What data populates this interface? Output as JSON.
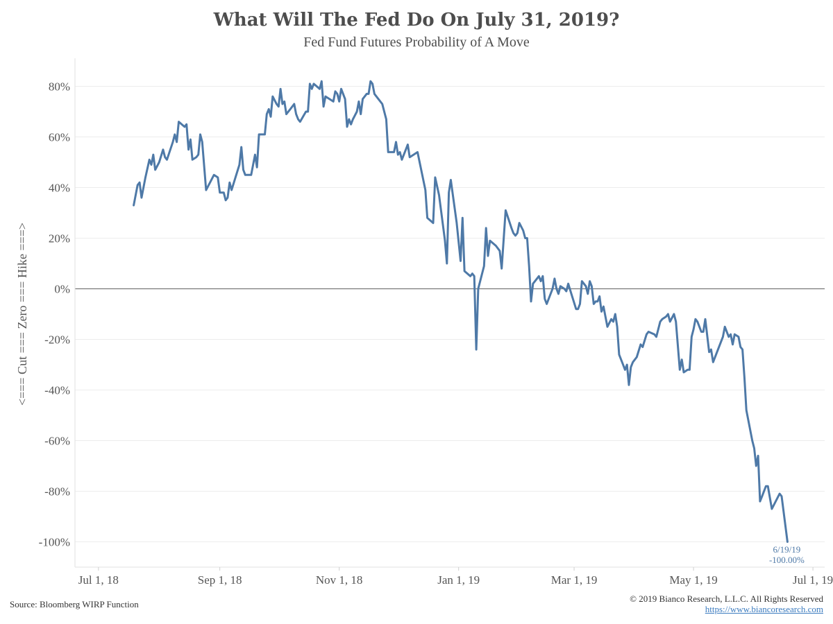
{
  "header": {
    "title": "What Will The Fed Do On July 31, 2019?",
    "subtitle": "Fed Fund Futures Probability of A Move"
  },
  "footer": {
    "source": "Source: Bloomberg WIRP Function",
    "copyright": "© 2019 Bianco Research, L.L.C. All Rights Reserved",
    "url": "https://www.biancoresearch.com"
  },
  "colors": {
    "line": "#4e79a7",
    "zero_line": "#777777",
    "grid": "#ececec",
    "annotation": "#4e79a7"
  },
  "chart_data": {
    "type": "line",
    "title": "What Will The Fed Do On July 31, 2019?",
    "subtitle": "Fed Fund Futures Probability of A Move",
    "xlabel": "",
    "ylabel": "<=== Cut === Zero === Hike ===>",
    "ylim": [
      -110,
      90
    ],
    "xlim": [
      "2018-06-19",
      "2019-07-07"
    ],
    "y_ticks": [
      80,
      60,
      40,
      20,
      0,
      -20,
      -40,
      -60,
      -80,
      -100
    ],
    "y_tick_labels": [
      "80%",
      "60%",
      "40%",
      "20%",
      "0%",
      "-20%",
      "-40%",
      "-60%",
      "-80%",
      "-100%"
    ],
    "x_ticks": [
      "2018-07-01",
      "2018-09-01",
      "2018-11-01",
      "2019-01-01",
      "2019-03-01",
      "2019-05-01",
      "2019-07-01"
    ],
    "x_tick_labels": [
      "Jul 1, 18",
      "Sep 1, 18",
      "Nov 1, 18",
      "Jan 1, 19",
      "Mar 1, 19",
      "May 1, 19",
      "Jul 1, 19"
    ],
    "grid": true,
    "zero_line": true,
    "annotation": {
      "date": "2019-06-19",
      "label_date": "6/19/19",
      "label_value": "-100.00%"
    },
    "series": [
      {
        "values": [
          [
            "2018-07-19",
            33
          ],
          [
            "2018-07-21",
            41
          ],
          [
            "2018-07-22",
            42
          ],
          [
            "2018-07-23",
            36
          ],
          [
            "2018-07-25",
            44
          ],
          [
            "2018-07-27",
            51
          ],
          [
            "2018-07-28",
            49
          ],
          [
            "2018-07-29",
            53
          ],
          [
            "2018-07-30",
            47
          ],
          [
            "2018-08-01",
            50
          ],
          [
            "2018-08-03",
            55
          ],
          [
            "2018-08-04",
            52
          ],
          [
            "2018-08-05",
            51
          ],
          [
            "2018-08-08",
            58
          ],
          [
            "2018-08-09",
            61
          ],
          [
            "2018-08-10",
            58
          ],
          [
            "2018-08-11",
            66
          ],
          [
            "2018-08-14",
            64
          ],
          [
            "2018-08-15",
            65
          ],
          [
            "2018-08-16",
            55
          ],
          [
            "2018-08-17",
            59
          ],
          [
            "2018-08-18",
            51
          ],
          [
            "2018-08-20",
            52
          ],
          [
            "2018-08-21",
            53
          ],
          [
            "2018-08-22",
            61
          ],
          [
            "2018-08-23",
            58
          ],
          [
            "2018-08-25",
            39
          ],
          [
            "2018-08-27",
            42
          ],
          [
            "2018-08-29",
            45
          ],
          [
            "2018-08-31",
            44
          ],
          [
            "2018-09-01",
            38
          ],
          [
            "2018-09-03",
            38
          ],
          [
            "2018-09-04",
            35
          ],
          [
            "2018-09-05",
            36
          ],
          [
            "2018-09-06",
            42
          ],
          [
            "2018-09-07",
            39
          ],
          [
            "2018-09-09",
            44
          ],
          [
            "2018-09-11",
            49
          ],
          [
            "2018-09-12",
            56
          ],
          [
            "2018-09-13",
            47
          ],
          [
            "2018-09-14",
            45
          ],
          [
            "2018-09-17",
            45
          ],
          [
            "2018-09-19",
            53
          ],
          [
            "2018-09-20",
            48
          ],
          [
            "2018-09-21",
            61
          ],
          [
            "2018-09-24",
            61
          ],
          [
            "2018-09-25",
            69
          ],
          [
            "2018-09-26",
            71
          ],
          [
            "2018-09-27",
            68
          ],
          [
            "2018-09-28",
            76
          ],
          [
            "2018-09-30",
            73
          ],
          [
            "2018-10-01",
            72
          ],
          [
            "2018-10-02",
            79
          ],
          [
            "2018-10-03",
            73
          ],
          [
            "2018-10-04",
            74
          ],
          [
            "2018-10-05",
            69
          ],
          [
            "2018-10-07",
            71
          ],
          [
            "2018-10-09",
            73
          ],
          [
            "2018-10-10",
            69
          ],
          [
            "2018-10-11",
            67
          ],
          [
            "2018-10-12",
            66
          ],
          [
            "2018-10-15",
            70
          ],
          [
            "2018-10-16",
            70
          ],
          [
            "2018-10-17",
            81
          ],
          [
            "2018-10-18",
            79
          ],
          [
            "2018-10-19",
            81
          ],
          [
            "2018-10-22",
            79
          ],
          [
            "2018-10-23",
            82
          ],
          [
            "2018-10-24",
            72
          ],
          [
            "2018-10-25",
            76
          ],
          [
            "2018-10-27",
            75
          ],
          [
            "2018-10-29",
            74
          ],
          [
            "2018-10-30",
            78
          ],
          [
            "2018-10-31",
            77
          ],
          [
            "2018-11-01",
            74
          ],
          [
            "2018-11-02",
            79
          ],
          [
            "2018-11-04",
            75
          ],
          [
            "2018-11-05",
            64
          ],
          [
            "2018-11-06",
            67
          ],
          [
            "2018-11-07",
            65
          ],
          [
            "2018-11-08",
            67
          ],
          [
            "2018-11-10",
            70
          ],
          [
            "2018-11-11",
            74
          ],
          [
            "2018-11-12",
            69
          ],
          [
            "2018-11-13",
            75
          ],
          [
            "2018-11-15",
            77
          ],
          [
            "2018-11-16",
            77
          ],
          [
            "2018-11-17",
            82
          ],
          [
            "2018-11-18",
            81
          ],
          [
            "2018-11-19",
            77
          ],
          [
            "2018-11-21",
            75
          ],
          [
            "2018-11-23",
            73
          ],
          [
            "2018-11-25",
            67
          ],
          [
            "2018-11-26",
            54
          ],
          [
            "2018-11-29",
            54
          ],
          [
            "2018-11-30",
            58
          ],
          [
            "2018-12-01",
            53
          ],
          [
            "2018-12-02",
            54
          ],
          [
            "2018-12-03",
            51
          ],
          [
            "2018-12-05",
            55
          ],
          [
            "2018-12-06",
            57
          ],
          [
            "2018-12-07",
            52
          ],
          [
            "2018-12-09",
            53
          ],
          [
            "2018-12-11",
            54
          ],
          [
            "2018-12-15",
            39
          ],
          [
            "2018-12-16",
            28
          ],
          [
            "2018-12-19",
            26
          ],
          [
            "2018-12-20",
            44
          ],
          [
            "2018-12-22",
            37
          ],
          [
            "2018-12-25",
            19
          ],
          [
            "2018-12-26",
            10
          ],
          [
            "2018-12-27",
            38
          ],
          [
            "2018-12-28",
            43
          ],
          [
            "2018-12-31",
            26
          ],
          [
            "2019-01-02",
            11
          ],
          [
            "2019-01-03",
            28
          ],
          [
            "2019-01-04",
            7
          ],
          [
            "2019-01-07",
            5
          ],
          [
            "2019-01-08",
            6
          ],
          [
            "2019-01-09",
            5
          ],
          [
            "2019-01-10",
            -24
          ],
          [
            "2019-01-11",
            0
          ],
          [
            "2019-01-14",
            9
          ],
          [
            "2019-01-15",
            24
          ],
          [
            "2019-01-16",
            13
          ],
          [
            "2019-01-17",
            19
          ],
          [
            "2019-01-20",
            17
          ],
          [
            "2019-01-22",
            15
          ],
          [
            "2019-01-23",
            8
          ],
          [
            "2019-01-25",
            31
          ],
          [
            "2019-01-28",
            24
          ],
          [
            "2019-01-29",
            22
          ],
          [
            "2019-01-30",
            21
          ],
          [
            "2019-01-31",
            22
          ],
          [
            "2019-02-01",
            26
          ],
          [
            "2019-02-03",
            23
          ],
          [
            "2019-02-04",
            20
          ],
          [
            "2019-02-05",
            20
          ],
          [
            "2019-02-06",
            9
          ],
          [
            "2019-02-07",
            -5
          ],
          [
            "2019-02-08",
            2
          ],
          [
            "2019-02-10",
            4
          ],
          [
            "2019-02-11",
            5
          ],
          [
            "2019-02-12",
            3
          ],
          [
            "2019-02-13",
            5
          ],
          [
            "2019-02-14",
            -4
          ],
          [
            "2019-02-15",
            -6
          ],
          [
            "2019-02-18",
            0
          ],
          [
            "2019-02-19",
            4
          ],
          [
            "2019-02-20",
            0
          ],
          [
            "2019-02-21",
            -2
          ],
          [
            "2019-02-22",
            1
          ],
          [
            "2019-02-24",
            0
          ],
          [
            "2019-02-25",
            -1
          ],
          [
            "2019-02-26",
            2
          ],
          [
            "2019-02-28",
            -3
          ],
          [
            "2019-03-02",
            -8
          ],
          [
            "2019-03-03",
            -8
          ],
          [
            "2019-03-04",
            -6
          ],
          [
            "2019-03-05",
            3
          ],
          [
            "2019-03-07",
            1
          ],
          [
            "2019-03-08",
            -2
          ],
          [
            "2019-03-09",
            3
          ],
          [
            "2019-03-10",
            1
          ],
          [
            "2019-03-11",
            -6
          ],
          [
            "2019-03-12",
            -5
          ],
          [
            "2019-03-13",
            -5
          ],
          [
            "2019-03-14",
            -3
          ],
          [
            "2019-03-15",
            -9
          ],
          [
            "2019-03-16",
            -7
          ],
          [
            "2019-03-18",
            -15
          ],
          [
            "2019-03-20",
            -12
          ],
          [
            "2019-03-21",
            -13
          ],
          [
            "2019-03-22",
            -10
          ],
          [
            "2019-03-23",
            -15
          ],
          [
            "2019-03-24",
            -26
          ],
          [
            "2019-03-26",
            -30
          ],
          [
            "2019-03-27",
            -32
          ],
          [
            "2019-03-28",
            -30
          ],
          [
            "2019-03-29",
            -38
          ],
          [
            "2019-03-30",
            -31
          ],
          [
            "2019-03-31",
            -29
          ],
          [
            "2019-04-02",
            -27
          ],
          [
            "2019-04-04",
            -22
          ],
          [
            "2019-04-05",
            -23
          ],
          [
            "2019-04-07",
            -18
          ],
          [
            "2019-04-08",
            -17
          ],
          [
            "2019-04-11",
            -18
          ],
          [
            "2019-04-12",
            -19
          ],
          [
            "2019-04-14",
            -13
          ],
          [
            "2019-04-15",
            -12
          ],
          [
            "2019-04-17",
            -11
          ],
          [
            "2019-04-18",
            -10
          ],
          [
            "2019-04-19",
            -13
          ],
          [
            "2019-04-21",
            -10
          ],
          [
            "2019-04-22",
            -13
          ],
          [
            "2019-04-24",
            -32
          ],
          [
            "2019-04-25",
            -28
          ],
          [
            "2019-04-26",
            -33
          ],
          [
            "2019-04-28",
            -32
          ],
          [
            "2019-04-29",
            -32
          ],
          [
            "2019-04-30",
            -19
          ],
          [
            "2019-05-01",
            -16
          ],
          [
            "2019-05-02",
            -12
          ],
          [
            "2019-05-03",
            -13
          ],
          [
            "2019-05-05",
            -17
          ],
          [
            "2019-05-06",
            -17
          ],
          [
            "2019-05-07",
            -12
          ],
          [
            "2019-05-09",
            -25
          ],
          [
            "2019-05-10",
            -24
          ],
          [
            "2019-05-11",
            -29
          ],
          [
            "2019-05-13",
            -25
          ],
          [
            "2019-05-16",
            -19
          ],
          [
            "2019-05-17",
            -15
          ],
          [
            "2019-05-19",
            -19
          ],
          [
            "2019-05-20",
            -18
          ],
          [
            "2019-05-21",
            -22
          ],
          [
            "2019-05-22",
            -18
          ],
          [
            "2019-05-24",
            -19
          ],
          [
            "2019-05-25",
            -23
          ],
          [
            "2019-05-26",
            -24
          ],
          [
            "2019-05-27",
            -35
          ],
          [
            "2019-05-28",
            -48
          ],
          [
            "2019-05-31",
            -60
          ],
          [
            "2019-06-01",
            -63
          ],
          [
            "2019-06-02",
            -70
          ],
          [
            "2019-06-03",
            -66
          ],
          [
            "2019-06-04",
            -84
          ],
          [
            "2019-06-05",
            -82
          ],
          [
            "2019-06-06",
            -80
          ],
          [
            "2019-06-07",
            -78
          ],
          [
            "2019-06-08",
            -78
          ],
          [
            "2019-06-10",
            -87
          ],
          [
            "2019-06-14",
            -81
          ],
          [
            "2019-06-15",
            -82
          ],
          [
            "2019-06-18",
            -100
          ]
        ]
      }
    ]
  }
}
